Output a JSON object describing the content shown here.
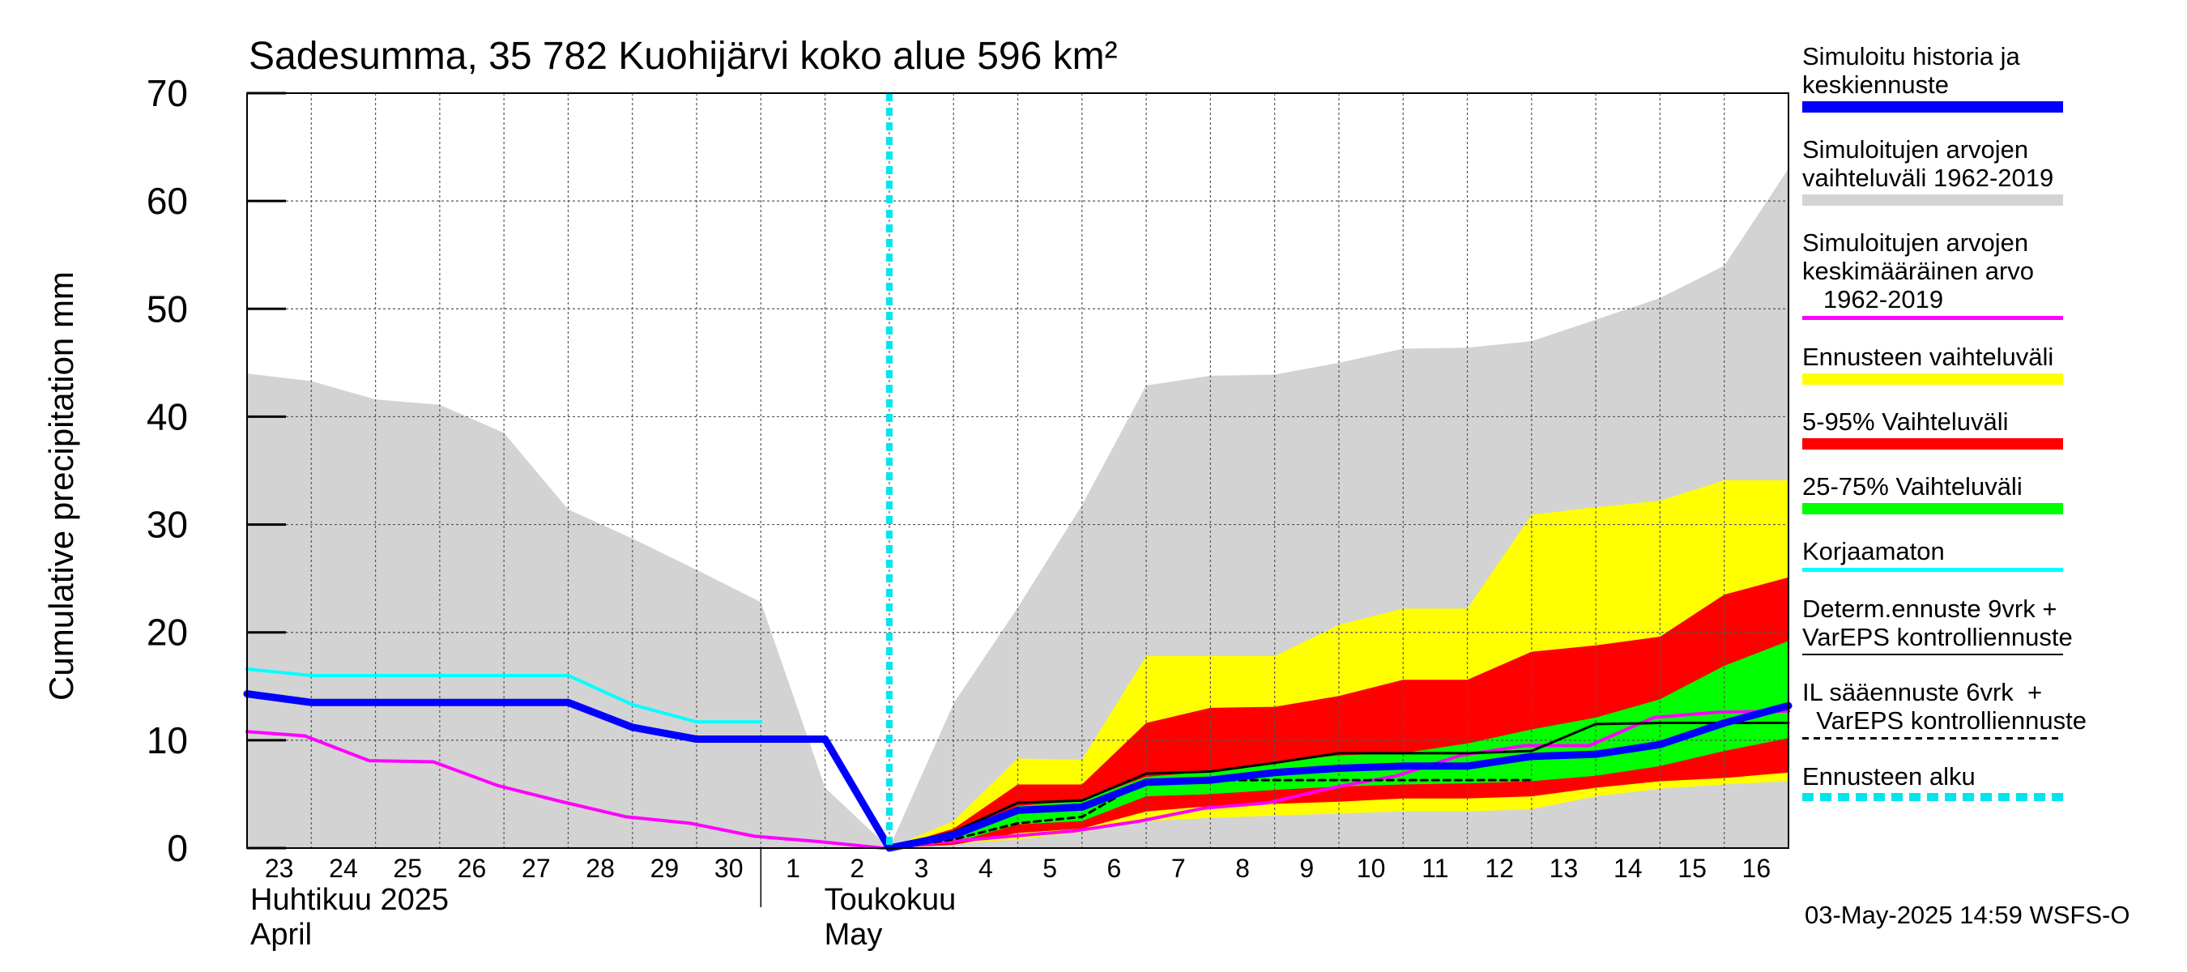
{
  "chart_data": {
    "type": "area",
    "title": "Sadesumma, 35 782 Kuohijärvi koko alue 596 km²",
    "ylabel": "Cumulative precipitation   mm",
    "ylim": [
      0,
      70
    ],
    "yticks": [
      0,
      10,
      20,
      30,
      40,
      50,
      60,
      70
    ],
    "grid": true,
    "legend_position": "right",
    "x_labels": [
      "23",
      "24",
      "25",
      "26",
      "27",
      "28",
      "29",
      "30",
      "1",
      "2",
      "3",
      "4",
      "5",
      "6",
      "7",
      "8",
      "9",
      "10",
      "11",
      "12",
      "13",
      "14",
      "15",
      "16"
    ],
    "month_labels": [
      {
        "fi": "Huhtikuu  2025",
        "en": "April"
      },
      {
        "fi": "Toukokuu",
        "en": "May"
      }
    ],
    "forecast_start_day": 10,
    "series": [
      {
        "name": "Simuloitujen arvojen vaihteluväli 1962-2019",
        "kind": "band",
        "x": [
          0,
          1,
          2,
          3,
          4,
          5,
          6,
          7,
          8,
          9,
          10,
          11,
          12,
          13,
          14,
          15,
          16,
          17,
          18,
          19,
          20,
          21,
          22,
          23,
          24
        ],
        "upper": [
          44,
          43.3,
          41.6,
          41.1,
          38.5,
          31.4,
          28.7,
          25.8,
          22.8,
          5.6,
          0,
          13.4,
          22.3,
          31.8,
          42.9,
          43.8,
          43.9,
          45,
          46.3,
          46.4,
          47,
          49,
          51,
          54,
          63
        ],
        "lower": [
          0,
          0,
          0,
          0,
          0,
          0,
          0,
          0,
          0,
          0,
          0,
          0,
          0,
          0,
          0,
          0,
          0,
          0,
          0,
          0,
          0,
          0,
          0,
          0,
          0
        ]
      },
      {
        "name": "Ennusteen vaihteluväli",
        "kind": "band",
        "x": [
          10,
          11,
          12,
          13,
          14,
          15,
          16,
          17,
          18,
          19,
          20,
          21,
          22,
          23,
          24
        ],
        "upper": [
          0,
          2.5,
          8.3,
          8.2,
          17.8,
          17.8,
          17.8,
          20.7,
          22.2,
          22.2,
          30.9,
          31.6,
          32.2,
          34.1,
          34.1
        ],
        "lower": [
          0,
          0.4,
          0.8,
          1.5,
          2.5,
          2.8,
          3,
          3.2,
          3.4,
          3.4,
          3.6,
          4.8,
          5.5,
          5.9,
          6.2
        ]
      },
      {
        "name": "5-95% Vaihteluväli",
        "kind": "band",
        "x": [
          10,
          11,
          12,
          13,
          14,
          15,
          16,
          17,
          18,
          19,
          20,
          21,
          22,
          23,
          24
        ],
        "upper": [
          0,
          1.8,
          5.9,
          5.9,
          11.6,
          13,
          13.1,
          14.1,
          15.6,
          15.6,
          18.2,
          18.8,
          19.6,
          23.5,
          25.1
        ],
        "lower": [
          0,
          0.3,
          1.4,
          1.8,
          3.4,
          3.9,
          4.1,
          4.3,
          4.6,
          4.6,
          4.8,
          5.6,
          6.2,
          6.5,
          7
        ]
      },
      {
        "name": "25-75% Vaihteluväli",
        "kind": "band",
        "x": [
          10,
          11,
          12,
          13,
          14,
          15,
          16,
          17,
          18,
          19,
          20,
          21,
          22,
          23,
          24
        ],
        "upper": [
          0,
          1,
          3.9,
          4.4,
          6.6,
          7.1,
          8,
          8.6,
          8.8,
          9.7,
          11,
          12.1,
          13.8,
          16.9,
          19.2
        ],
        "lower": [
          0,
          0.5,
          2.2,
          2.5,
          4.8,
          5,
          5.4,
          5.7,
          5.9,
          6,
          6.2,
          6.7,
          7.6,
          9,
          10.2
        ]
      },
      {
        "name": "Korjaamaton",
        "kind": "line",
        "x": [
          0,
          1,
          2,
          3,
          4,
          5,
          6,
          7,
          8
        ],
        "y": [
          16.6,
          16,
          16,
          16,
          16,
          16,
          13.3,
          11.7,
          11.7
        ]
      },
      {
        "name": "Simuloitujen arvojen keskimääräinen arvo 1962-2019",
        "kind": "line",
        "x": [
          0,
          0.9,
          1.9,
          2.9,
          3.9,
          4.9,
          5.9,
          6.9,
          7.9,
          8.9,
          9.9,
          10.9,
          11.9,
          12.9,
          13.9,
          14.9,
          15.9,
          16.9,
          17.9,
          18.9,
          19.9,
          20.9,
          21.9,
          22.9,
          24
        ],
        "y": [
          10.8,
          10.4,
          8.1,
          8,
          5.8,
          4.3,
          2.9,
          2.3,
          1.1,
          0.6,
          0,
          0.6,
          1.1,
          1.6,
          2.5,
          3.7,
          4.2,
          5.6,
          6.7,
          8.6,
          9.5,
          9.5,
          12.1,
          12.6,
          12.7
        ]
      },
      {
        "name": "Determ.ennuste 9vrk + VarEPS kontrolliennuste",
        "kind": "line",
        "x": [
          10,
          11,
          12,
          13,
          14,
          15,
          16,
          17,
          18,
          19,
          20,
          21,
          22,
          23,
          24
        ],
        "y": [
          0,
          1.5,
          4.2,
          4.4,
          6.9,
          7.1,
          7.9,
          8.8,
          8.8,
          8.8,
          9,
          11.5,
          11.6,
          11.6,
          11.6
        ]
      },
      {
        "name": "IL sääennuste 6vrk  +  VarEPS kontrolliennuste",
        "kind": "line",
        "x": [
          10,
          11,
          12,
          13,
          14,
          15,
          16,
          17,
          18,
          19,
          20,
          21,
          22,
          23,
          24
        ],
        "y": [
          0,
          0.8,
          2.3,
          2.9,
          6.3,
          6.3,
          6.3,
          6.3,
          6.3,
          6.3,
          6.3,
          null,
          null,
          null,
          null
        ]
      },
      {
        "name": "Simuloitu historia ja keskiennuste",
        "kind": "line",
        "x": [
          0,
          1,
          2,
          3,
          4,
          5,
          6,
          7,
          8,
          9,
          10,
          11,
          12,
          13,
          14,
          15,
          16,
          17,
          18,
          19,
          20,
          21,
          22,
          23,
          24
        ],
        "y": [
          14.3,
          13.5,
          13.5,
          13.5,
          13.5,
          13.5,
          11.2,
          10.1,
          10.1,
          10.1,
          0,
          1.2,
          3.5,
          3.8,
          6.1,
          6.3,
          7,
          7.4,
          7.6,
          7.6,
          8.5,
          8.7,
          9.6,
          11.6,
          13.2
        ]
      },
      {
        "name": "Ennusteen alku",
        "kind": "vline",
        "x": 10
      }
    ]
  },
  "legend": [
    {
      "label": "Simuloitu historia ja\nkeskiennuste",
      "color": "#0000ff",
      "style": "thick"
    },
    {
      "label": "Simuloitujen arvojen\nvaihteluväli 1962-2019",
      "color": "#d3d3d3",
      "style": "thick"
    },
    {
      "label": "Simuloitujen arvojen\nkeskimääräinen arvo\n   1962-2019",
      "color": "#ff00ff",
      "style": "thin"
    },
    {
      "label": "Ennusteen vaihteluväli",
      "color": "#ffff00",
      "style": "thick"
    },
    {
      "label": "5-95% Vaihteluväli",
      "color": "#ff0000",
      "style": "thick"
    },
    {
      "label": "25-75% Vaihteluväli",
      "color": "#00ff00",
      "style": "thick"
    },
    {
      "label": "Korjaamaton",
      "color": "#00ffff",
      "style": "thin"
    },
    {
      "label": "Determ.ennuste 9vrk +\nVarEPS kontrolliennuste",
      "color": "#000000",
      "style": "hairline"
    },
    {
      "label": "IL sääennuste 6vrk  +\n  VarEPS kontrolliennuste",
      "color": "#000000",
      "style": "dashed"
    },
    {
      "label": "Ennusteen alku",
      "color": "#00e5ee",
      "style": "dotted"
    }
  ],
  "timestamp": "03-May-2025 14:59 WSFS-O",
  "colors": {
    "history_band": "#d3d3d3",
    "forecast_range": "#ffff00",
    "p5_95": "#ff0000",
    "p25_75": "#00ff00",
    "mean_line": "#0000ff",
    "avg_line": "#ff00ff",
    "uncorrected": "#00ffff",
    "forecast_start": "#00e5ee"
  }
}
